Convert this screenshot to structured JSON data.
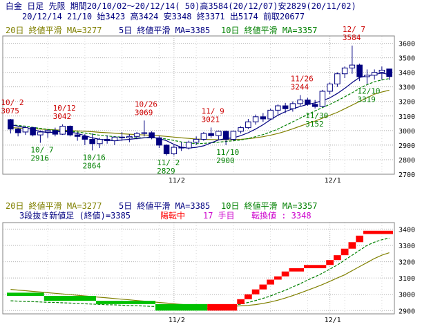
{
  "header": {
    "line1": "白金 日足 先限 期間20/10/02～20/12/14( 50)高3584(20/12/07)安2829(20/11/02)",
    "line2": "20/12/14 21/10 始3423 高3424 安3348 終3371 出5174 前取20677"
  },
  "colors": {
    "ma20": "#808000",
    "ma5": "#000080",
    "ma10": "#008000",
    "candle_up": "#000080",
    "candle_down": "#000080",
    "break_up": "#ff0000",
    "break_down": "#00c000",
    "grid": "#b0b0b0",
    "high_label": "#cc0000",
    "low_label": "#008000"
  },
  "chart_data": [
    {
      "type": "candlestick",
      "legend": {
        "ma20": "20日 終値平滑 MA=3277",
        "ma5": "5日 終値平滑 MA=3385",
        "ma10": "10日 終値平滑 MA=3357"
      },
      "ylim": [
        2700,
        3650
      ],
      "yticks": [
        2700,
        2800,
        2900,
        3000,
        3100,
        3200,
        3300,
        3400,
        3500,
        3600
      ],
      "xticks": [
        {
          "index": 22,
          "label": "11/2"
        },
        {
          "index": 43,
          "label": "12/1"
        }
      ],
      "ohlc": [
        [
          3075,
          3080,
          2980,
          3010
        ],
        [
          3010,
          3020,
          2960,
          2985
        ],
        [
          2990,
          3030,
          2970,
          3020
        ],
        [
          3020,
          3025,
          2960,
          2970
        ],
        [
          2970,
          3000,
          2916,
          2990
        ],
        [
          2990,
          3010,
          2950,
          3000
        ],
        [
          3000,
          3020,
          2960,
          2975
        ],
        [
          2975,
          3042,
          2970,
          3030
        ],
        [
          3030,
          3035,
          2960,
          2970
        ],
        [
          2970,
          2990,
          2930,
          2960
        ],
        [
          2960,
          2975,
          2900,
          2940
        ],
        [
          2940,
          2980,
          2864,
          2910
        ],
        [
          2910,
          2950,
          2880,
          2940
        ],
        [
          2940,
          2965,
          2910,
          2930
        ],
        [
          2930,
          2960,
          2900,
          2955
        ],
        [
          2955,
          2990,
          2930,
          2950
        ],
        [
          2950,
          2975,
          2920,
          2960
        ],
        [
          2960,
          2990,
          2940,
          2980
        ],
        [
          2980,
          3069,
          2960,
          2985
        ],
        [
          2985,
          2995,
          2940,
          2950
        ],
        [
          2950,
          2965,
          2880,
          2900
        ],
        [
          2900,
          2905,
          2829,
          2840
        ],
        [
          2840,
          2900,
          2830,
          2885
        ],
        [
          2885,
          2920,
          2860,
          2880
        ],
        [
          2880,
          2930,
          2870,
          2920
        ],
        [
          2920,
          2960,
          2900,
          2940
        ],
        [
          2940,
          2990,
          2930,
          2980
        ],
        [
          2980,
          3021,
          2950,
          2965
        ],
        [
          2965,
          3000,
          2940,
          2995
        ],
        [
          2995,
          3000,
          2900,
          2940
        ],
        [
          2940,
          3000,
          2930,
          2995
        ],
        [
          2995,
          3030,
          2980,
          3020
        ],
        [
          3020,
          3080,
          3010,
          3060
        ],
        [
          3060,
          3110,
          3040,
          3095
        ],
        [
          3095,
          3120,
          3060,
          3080
        ],
        [
          3080,
          3150,
          3070,
          3140
        ],
        [
          3140,
          3180,
          3110,
          3170
        ],
        [
          3170,
          3190,
          3120,
          3150
        ],
        [
          3150,
          3200,
          3130,
          3185
        ],
        [
          3185,
          3244,
          3170,
          3210
        ],
        [
          3210,
          3225,
          3170,
          3180
        ],
        [
          3180,
          3210,
          3152,
          3165
        ],
        [
          3165,
          3280,
          3160,
          3270
        ],
        [
          3270,
          3330,
          3250,
          3320
        ],
        [
          3320,
          3400,
          3300,
          3390
        ],
        [
          3390,
          3440,
          3360,
          3430
        ],
        [
          3430,
          3584,
          3390,
          3450
        ],
        [
          3450,
          3460,
          3340,
          3370
        ],
        [
          3370,
          3420,
          3319,
          3380
        ],
        [
          3380,
          3420,
          3350,
          3400
        ],
        [
          3400,
          3440,
          3350,
          3415
        ],
        [
          3423,
          3424,
          3348,
          3371
        ]
      ],
      "ma5": [
        3040,
        3030,
        3020,
        3005,
        2995,
        2985,
        2990,
        2995,
        2990,
        2980,
        2965,
        2950,
        2940,
        2935,
        2930,
        2935,
        2940,
        2945,
        2950,
        2955,
        2945,
        2930,
        2905,
        2885,
        2880,
        2885,
        2895,
        2915,
        2935,
        2945,
        2950,
        2965,
        2985,
        3010,
        3040,
        3075,
        3105,
        3130,
        3150,
        3165,
        3180,
        3190,
        3205,
        3225,
        3255,
        3290,
        3330,
        3365,
        3375,
        3385,
        3395,
        3385
      ],
      "ma10": [
        3040,
        3035,
        3030,
        3022,
        3015,
        3008,
        3002,
        2998,
        2994,
        2990,
        2983,
        2975,
        2968,
        2963,
        2958,
        2955,
        2952,
        2950,
        2950,
        2950,
        2948,
        2942,
        2932,
        2922,
        2915,
        2910,
        2912,
        2916,
        2920,
        2925,
        2930,
        2935,
        2945,
        2958,
        2972,
        2990,
        3010,
        3035,
        3060,
        3085,
        3110,
        3135,
        3158,
        3180,
        3205,
        3232,
        3260,
        3290,
        3315,
        3335,
        3348,
        3357
      ],
      "ma20": [
        3020,
        3018,
        3015,
        3012,
        3010,
        3007,
        3005,
        3002,
        3000,
        2998,
        2995,
        2992,
        2988,
        2985,
        2982,
        2978,
        2975,
        2972,
        2970,
        2967,
        2964,
        2960,
        2955,
        2950,
        2946,
        2942,
        2940,
        2938,
        2937,
        2937,
        2938,
        2940,
        2944,
        2950,
        2958,
        2968,
        2980,
        2995,
        3012,
        3030,
        3048,
        3065,
        3085,
        3105,
        3125,
        3150,
        3175,
        3200,
        3225,
        3250,
        3265,
        3277
      ],
      "annotations": [
        {
          "index": 0,
          "text": "10/ 2",
          "value": "3075",
          "kind": "high"
        },
        {
          "index": 7,
          "text": "10/12",
          "value": "3042",
          "kind": "high"
        },
        {
          "index": 4,
          "text": "10/ 7",
          "value": "2916",
          "kind": "low"
        },
        {
          "index": 11,
          "text": "10/16",
          "value": "2864",
          "kind": "low"
        },
        {
          "index": 18,
          "text": "10/26",
          "value": "3069",
          "kind": "high"
        },
        {
          "index": 21,
          "text": "11/ 2",
          "value": "2829",
          "kind": "low"
        },
        {
          "index": 27,
          "text": "11/ 9",
          "value": "3021",
          "kind": "high"
        },
        {
          "index": 29,
          "text": "11/10",
          "value": "2900",
          "kind": "low"
        },
        {
          "index": 39,
          "text": "11/26",
          "value": "3244",
          "kind": "high"
        },
        {
          "index": 41,
          "text": "11/30",
          "value": "3152",
          "kind": "low"
        },
        {
          "index": 46,
          "text": "12/ 7",
          "value": "3584",
          "kind": "high"
        },
        {
          "index": 48,
          "text": "12/10",
          "value": "3319",
          "kind": "low"
        }
      ]
    },
    {
      "type": "three-line-break",
      "legend": {
        "ma20": "20日 終値平滑 MA=3277",
        "ma5": "5日 終値平滑 MA=3385",
        "ma10": "10日 終値平滑 MA=3357"
      },
      "status": {
        "method": "3段抜き新値足 (終値)=3385",
        "trend": "陽転中",
        "count": "17 手目",
        "turn_label": "転換値 : 3348"
      },
      "ylim": [
        2880,
        3440
      ],
      "yticks": [
        2900,
        3000,
        3100,
        3200,
        3300,
        3400
      ],
      "xticks": [
        {
          "index": 22,
          "label": "11/2"
        },
        {
          "index": 43,
          "label": "12/1"
        }
      ],
      "bricks": [
        {
          "from": 0,
          "to": 5,
          "low": 2990,
          "high": 3010,
          "dir": "down"
        },
        {
          "from": 5,
          "to": 12,
          "low": 2960,
          "high": 2990,
          "dir": "down"
        },
        {
          "from": 12,
          "to": 20,
          "low": 2940,
          "high": 2960,
          "dir": "down"
        },
        {
          "from": 20,
          "to": 27,
          "low": 2900,
          "high": 2940,
          "dir": "down"
        },
        {
          "from": 27,
          "to": 31,
          "low": 2900,
          "high": 2940,
          "dir": "up"
        },
        {
          "from": 31,
          "to": 32,
          "low": 2940,
          "high": 2970,
          "dir": "up"
        },
        {
          "from": 32,
          "to": 33,
          "low": 2970,
          "high": 3000,
          "dir": "up"
        },
        {
          "from": 33,
          "to": 34,
          "low": 3000,
          "high": 3030,
          "dir": "up"
        },
        {
          "from": 34,
          "to": 35,
          "low": 3030,
          "high": 3060,
          "dir": "up"
        },
        {
          "from": 35,
          "to": 36,
          "low": 3060,
          "high": 3090,
          "dir": "up"
        },
        {
          "from": 36,
          "to": 37,
          "low": 3090,
          "high": 3110,
          "dir": "up"
        },
        {
          "from": 37,
          "to": 38,
          "low": 3110,
          "high": 3140,
          "dir": "up"
        },
        {
          "from": 38,
          "to": 40,
          "low": 3140,
          "high": 3160,
          "dir": "up"
        },
        {
          "from": 40,
          "to": 43,
          "low": 3160,
          "high": 3180,
          "dir": "up"
        },
        {
          "from": 43,
          "to": 44,
          "low": 3180,
          "high": 3210,
          "dir": "up"
        },
        {
          "from": 44,
          "to": 45,
          "low": 3210,
          "high": 3240,
          "dir": "up"
        },
        {
          "from": 45,
          "to": 46,
          "low": 3240,
          "high": 3280,
          "dir": "up"
        },
        {
          "from": 46,
          "to": 47,
          "low": 3280,
          "high": 3320,
          "dir": "up"
        },
        {
          "from": 47,
          "to": 48,
          "low": 3320,
          "high": 3360,
          "dir": "up"
        },
        {
          "from": 48,
          "to": 52,
          "low": 3370,
          "high": 3390,
          "dir": "up"
        }
      ],
      "ma10_shifted": [
        2960,
        2958,
        2956,
        2955,
        2953,
        2951,
        2950,
        2948,
        2946,
        2944,
        2942,
        2940,
        2938,
        2936,
        2935,
        2933,
        2931,
        2930,
        2928,
        2926,
        2925,
        2922,
        2918,
        2915,
        2913,
        2912,
        2913,
        2915,
        2920,
        2925,
        2932,
        2940,
        2950,
        2962,
        2975,
        2990,
        3008,
        3025,
        3045,
        3065,
        3088,
        3108,
        3130,
        3155,
        3180,
        3210,
        3240,
        3270,
        3300,
        3320,
        3335,
        3345
      ],
      "ma20_shifted": [
        3030,
        3026,
        3022,
        3018,
        3014,
        3010,
        3006,
        3002,
        2998,
        2994,
        2990,
        2986,
        2982,
        2978,
        2974,
        2970,
        2966,
        2962,
        2958,
        2954,
        2950,
        2946,
        2942,
        2938,
        2934,
        2931,
        2929,
        2927,
        2926,
        2926,
        2927,
        2929,
        2932,
        2937,
        2944,
        2953,
        2964,
        2977,
        2992,
        3008,
        3025,
        3042,
        3060,
        3080,
        3100,
        3120,
        3145,
        3170,
        3195,
        3220,
        3240,
        3255
      ]
    }
  ]
}
